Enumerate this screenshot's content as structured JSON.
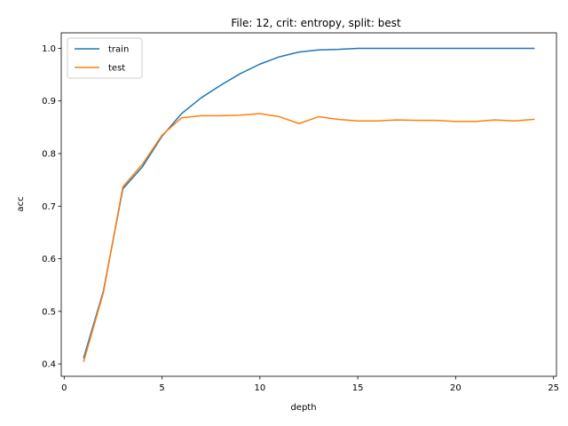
{
  "chart_data": {
    "type": "line",
    "title": "File: 12, crit: entropy, split: best",
    "xlabel": "depth",
    "ylabel": "acc",
    "xlim": [
      -0.15,
      25.15
    ],
    "ylim": [
      0.3765,
      1.0295
    ],
    "xticks": [
      0,
      5,
      10,
      15,
      20,
      25
    ],
    "yticks": [
      0.4,
      0.5,
      0.6,
      0.7,
      0.8,
      0.9,
      1.0
    ],
    "ytick_labels": [
      "0.4",
      "0.5",
      "0.6",
      "0.7",
      "0.8",
      "0.9",
      "1.0"
    ],
    "grid": false,
    "legend": "top-left",
    "x": [
      1,
      2,
      3,
      4,
      5,
      6,
      7,
      8,
      9,
      10,
      11,
      12,
      13,
      14,
      15,
      16,
      17,
      18,
      19,
      20,
      21,
      22,
      23,
      24
    ],
    "series": [
      {
        "name": "train",
        "color": "#1f77b4",
        "values": [
          0.412,
          0.538,
          0.733,
          0.775,
          0.833,
          0.876,
          0.906,
          0.93,
          0.952,
          0.97,
          0.984,
          0.993,
          0.997,
          0.998,
          1.0,
          1.0,
          1.0,
          1.0,
          1.0,
          1.0,
          1.0,
          1.0,
          1.0,
          1.0
        ]
      },
      {
        "name": "test",
        "color": "#ff7f0e",
        "values": [
          0.405,
          0.535,
          0.737,
          0.78,
          0.835,
          0.868,
          0.872,
          0.872,
          0.873,
          0.876,
          0.87,
          0.857,
          0.87,
          0.865,
          0.862,
          0.862,
          0.864,
          0.863,
          0.863,
          0.861,
          0.861,
          0.864,
          0.862,
          0.865
        ]
      }
    ]
  }
}
